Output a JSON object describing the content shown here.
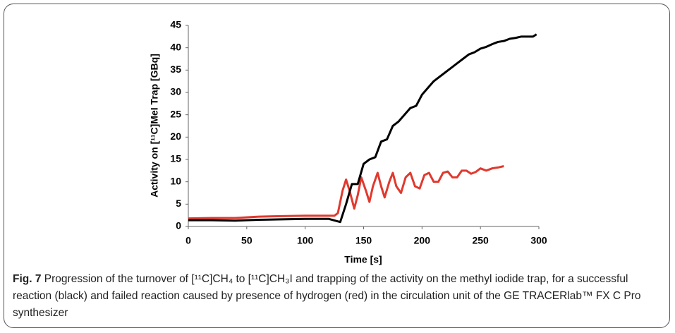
{
  "chart_data": {
    "type": "line",
    "ylabel": "Activity on [¹¹C]MeI Trap [GBq]",
    "xlabel": "Time [s]",
    "caption_label": "Fig. 7",
    "caption": "Progression of the turnover of [¹¹C]CH₄ to [¹¹C]CH₃I and trapping of the activity on the methyl iodide trap, for a successful reaction (black) and failed reaction caused by presence of hydrogen (red) in the circulation unit of the GE TRACERlab™ FX C Pro synthesizer",
    "xlim": [
      0,
      300
    ],
    "xticks": [
      0,
      50,
      100,
      150,
      200,
      250,
      300
    ],
    "ylim": [
      0,
      45
    ],
    "yticks": [
      0,
      5,
      10,
      15,
      20,
      25,
      30,
      35,
      40,
      45
    ],
    "series": [
      {
        "color": "#e0392e",
        "x": [
          0,
          20,
          40,
          60,
          80,
          100,
          120,
          125,
          128,
          132,
          135,
          138,
          142,
          145,
          148,
          152,
          155,
          158,
          162,
          165,
          168,
          172,
          175,
          178,
          182,
          186,
          190,
          194,
          198,
          202,
          206,
          210,
          214,
          218,
          222,
          226,
          230,
          234,
          238,
          242,
          246,
          250,
          255,
          260,
          265,
          270
        ],
        "values": [
          1.8,
          1.9,
          1.9,
          2.2,
          2.3,
          2.4,
          2.4,
          2.4,
          3,
          8,
          10.5,
          8,
          4,
          7,
          11,
          8,
          5.5,
          9,
          12,
          9,
          6.5,
          10,
          12,
          9,
          7.5,
          11,
          12,
          9,
          8.5,
          11.5,
          12,
          10,
          10,
          12,
          12.3,
          11,
          11,
          12.5,
          12.5,
          11.8,
          12.2,
          13,
          12.5,
          13,
          13.2,
          13.5
        ]
      },
      {
        "color": "#000000",
        "x": [
          0,
          20,
          40,
          60,
          80,
          100,
          120,
          130,
          135,
          140,
          145,
          150,
          155,
          160,
          165,
          170,
          175,
          180,
          185,
          190,
          195,
          200,
          205,
          210,
          215,
          220,
          225,
          230,
          235,
          240,
          245,
          250,
          255,
          260,
          265,
          270,
          275,
          280,
          285,
          290,
          295,
          298
        ],
        "values": [
          1.4,
          1.4,
          1.3,
          1.5,
          1.6,
          1.7,
          1.7,
          1,
          5,
          9.5,
          9.5,
          14,
          15,
          15.5,
          19,
          19.5,
          22.5,
          23.5,
          25,
          26.5,
          27,
          29.5,
          31,
          32.5,
          33.5,
          34.5,
          35.5,
          36.5,
          37.5,
          38.5,
          39,
          39.8,
          40.2,
          40.8,
          41.3,
          41.5,
          42,
          42.2,
          42.5,
          42.5,
          42.5,
          43
        ]
      }
    ]
  }
}
